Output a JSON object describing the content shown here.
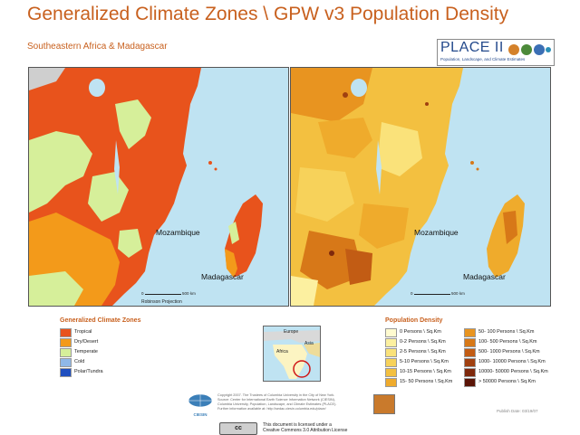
{
  "header": {
    "title": "Generalized Climate Zones \\ GPW v3 Population Density",
    "subtitle": "Southeastern Africa & Madagascar"
  },
  "logo": {
    "name": "PLACE II",
    "tagline": "Population, Landscape, and Climate Estimates"
  },
  "maps": {
    "left": {
      "labels": {
        "mozambique": "Mozambique",
        "madagascar": "Madagascar"
      },
      "scale": {
        "zero": "0",
        "max": "500",
        "unit": "km"
      },
      "projection": "Robinson Projection"
    },
    "right": {
      "labels": {
        "mozambique": "Mozambique",
        "madagascar": "Madagascar"
      },
      "scale": {
        "zero": "0",
        "max": "500",
        "unit": "km"
      }
    }
  },
  "climate_legend": {
    "title": "Generalized Climate Zones",
    "items": [
      {
        "label": "Tropical",
        "color": "#e8531c"
      },
      {
        "label": "Dry/Desert",
        "color": "#f39a1a"
      },
      {
        "label": "Temperate",
        "color": "#d6ef9a"
      },
      {
        "label": "Cold",
        "color": "#8fb8e8"
      },
      {
        "label": "Polar/Tundra",
        "color": "#1f4fbf"
      }
    ]
  },
  "inset": {
    "europe": "Europe",
    "asia": "Asia",
    "africa": "Africa"
  },
  "population_legend": {
    "title": "Population Density",
    "col1": [
      {
        "label": "0 Persons \\ Sq.Km",
        "color": "#fffbd0"
      },
      {
        "label": "0-2 Persons \\ Sq.Km",
        "color": "#fcf0a0"
      },
      {
        "label": "2-5 Persons \\ Sq.Km",
        "color": "#fae27a"
      },
      {
        "label": "5-10 Persons \\ Sq.Km",
        "color": "#f7d25a"
      },
      {
        "label": "10-15 Persons \\ Sq.Km",
        "color": "#f3c040"
      },
      {
        "label": "15- 50 Persons \\ Sq.Km",
        "color": "#efab2c"
      }
    ],
    "col2": [
      {
        "label": "50- 100 Persons \\ Sq.Km",
        "color": "#e89420"
      },
      {
        "label": "100- 500 Persons \\ Sq.Km",
        "color": "#d77818"
      },
      {
        "label": "500- 1000 Persons \\ Sq.Km",
        "color": "#c25c14"
      },
      {
        "label": "1000- 10000 Persons \\ Sq.Km",
        "color": "#a04010"
      },
      {
        "label": "10000- 50000 Persons \\ Sq.Km",
        "color": "#7e280c"
      },
      {
        "label": "> 50000 Persons \\ Sq.Km",
        "color": "#5a1406"
      }
    ]
  },
  "credits": {
    "line1": "Copyright 2007. The Trustees of Columbia University in the City of New York.",
    "line2": "Source: Center for International Earth Science Information Network (CIESIN),",
    "line3": "Columbia University, Population, Landscape, and Climate Estimates (PLACE).",
    "line4": "Further information available at: http://sedac.ciesin.columbia.edu/place/",
    "org": "CIESIN",
    "publish_date": "Publish Date: 03/19/07"
  },
  "license": {
    "badge": "cc",
    "line1": "This document is licensed under a",
    "line2": "Creative Commons 3.0 Attribution License"
  },
  "colors": {
    "ocean": "#bfe3f2",
    "title": "#c8601e",
    "land_gray": "#cfcfcf"
  }
}
